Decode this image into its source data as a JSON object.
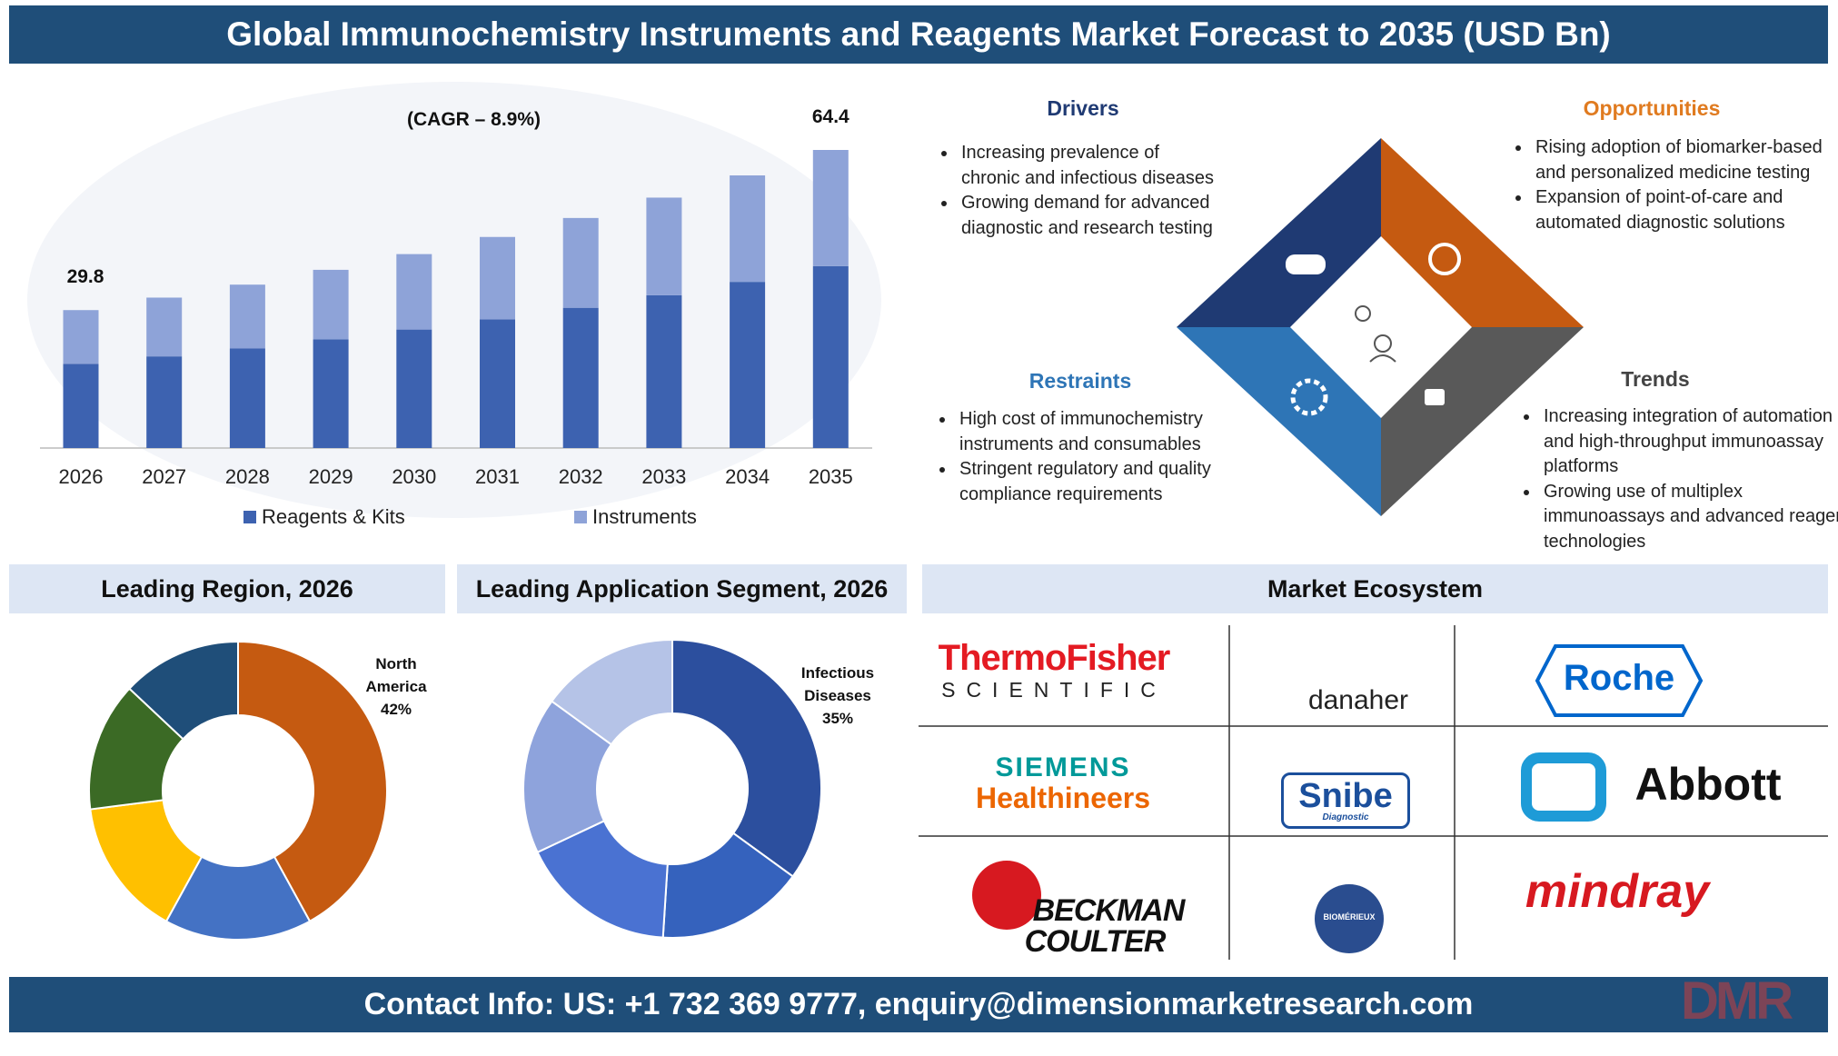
{
  "header": {
    "title": "Global Immunochemistry Instruments and Reagents Market Forecast to 2035 (USD Bn)"
  },
  "chart_data": [
    {
      "type": "stacked-bar",
      "annotation": "(CAGR – 8.9%)",
      "categories": [
        "2026",
        "2027",
        "2028",
        "2029",
        "2030",
        "2031",
        "2032",
        "2033",
        "2034",
        "2035"
      ],
      "series": [
        {
          "name": "Reagents & Kits",
          "color": "#3d62b0",
          "values": [
            18.2,
            19.8,
            21.5,
            23.5,
            25.6,
            27.8,
            30.3,
            33.0,
            35.9,
            39.3
          ]
        },
        {
          "name": "Instruments",
          "color": "#8ea3d8",
          "values": [
            11.6,
            12.7,
            13.8,
            15.0,
            16.3,
            17.8,
            19.4,
            21.1,
            23.0,
            25.1
          ]
        }
      ],
      "total_labels": [
        29.8,
        null,
        null,
        null,
        null,
        null,
        null,
        null,
        null,
        64.4
      ]
    },
    {
      "type": "donut",
      "title": "Leading Region, 2026",
      "categories": [
        "North America",
        null,
        null,
        null,
        null
      ],
      "values": [
        42,
        16,
        15,
        14,
        13
      ],
      "value_labels": [
        "42%",
        null,
        null,
        null,
        null
      ],
      "colors": [
        "#c55a11",
        "#4472c4",
        "#ffc000",
        "#3b6a25",
        "#1f4e79"
      ]
    },
    {
      "type": "donut",
      "title": "Leading Application Segment, 2026",
      "categories": [
        "Infectious Diseases",
        null,
        null,
        null,
        null
      ],
      "values": [
        35,
        16,
        17,
        17,
        15
      ],
      "value_labels": [
        "35%",
        null,
        null,
        null,
        null
      ],
      "colors": [
        "#2c4f9e",
        "#3562bd",
        "#4a72d2",
        "#8ea3dc",
        "#b5c3e7"
      ]
    }
  ],
  "factors": {
    "drivers": {
      "title": "Drivers",
      "items": [
        "Increasing prevalence of chronic and infectious diseases",
        "Growing demand for advanced diagnostic and research testing"
      ]
    },
    "opportunities": {
      "title": "Opportunities",
      "items": [
        "Rising adoption of biomarker-based and personalized medicine testing",
        "Expansion of point-of-care and automated diagnostic solutions"
      ]
    },
    "restraints": {
      "title": "Restraints",
      "items": [
        "High cost of immunochemistry instruments and consumables",
        "Stringent regulatory and quality compliance requirements"
      ]
    },
    "trends": {
      "title": "Trends",
      "items": [
        "Increasing integration of automation and high-throughput immunoassay platforms",
        "Growing use of multiplex immunoassays and advanced reagent technologies"
      ]
    }
  },
  "ecosystem": {
    "title": "Market Ecosystem",
    "logos": [
      [
        "ThermoFisher",
        "SCIENTIFIC"
      ],
      [
        "danaher"
      ],
      [
        "Roche"
      ],
      [
        "SIEMENS",
        "Healthineers"
      ],
      [
        "Snibe",
        "Diagnostic"
      ],
      [
        "Abbott"
      ],
      [
        "BECKMAN",
        "COULTER"
      ],
      [
        "BIOMÉRIEUX"
      ],
      [
        "mindray"
      ]
    ]
  },
  "footer": {
    "contact": "Contact Info: US: +1 732 369 9777, enquiry@dimensionmarketresearch.com",
    "brand": "DMR"
  }
}
